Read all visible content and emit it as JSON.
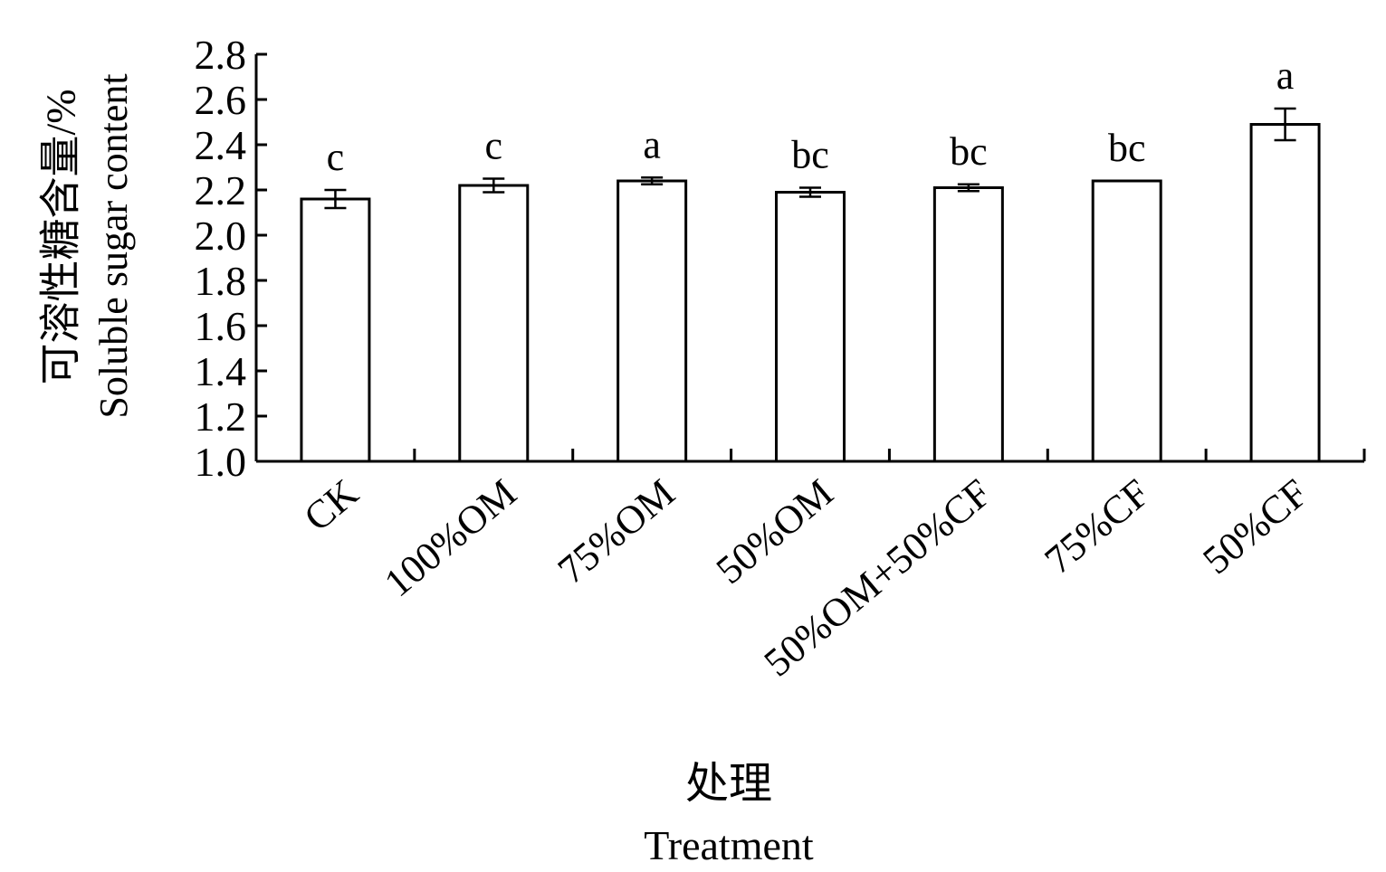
{
  "chart_data": {
    "type": "bar",
    "categories": [
      "CK",
      "100%OM",
      "75%OM",
      "50%OM",
      "50%OM+50%CF",
      "75%CF",
      "50%CF"
    ],
    "values": [
      2.16,
      2.22,
      2.24,
      2.19,
      2.21,
      2.24,
      2.49
    ],
    "errors": [
      0.04,
      0.03,
      0.015,
      0.02,
      0.015,
      0.0,
      0.07
    ],
    "significance": [
      "c",
      "c",
      "a",
      "bc",
      "bc",
      "bc",
      "a"
    ],
    "ylim": [
      1.0,
      2.8
    ],
    "yticks": [
      "1.0",
      "1.2",
      "1.4",
      "1.6",
      "1.8",
      "2.0",
      "2.2",
      "2.4",
      "2.6",
      "2.8"
    ],
    "ylabel_cn": "可溶性糖含量/%",
    "ylabel_en": "Soluble sugar content",
    "xlabel_cn": "处理",
    "xlabel_en": "Treatment",
    "bar_fill": "#ffffff",
    "bar_stroke": "#000000",
    "grid": false,
    "legend": "none"
  }
}
